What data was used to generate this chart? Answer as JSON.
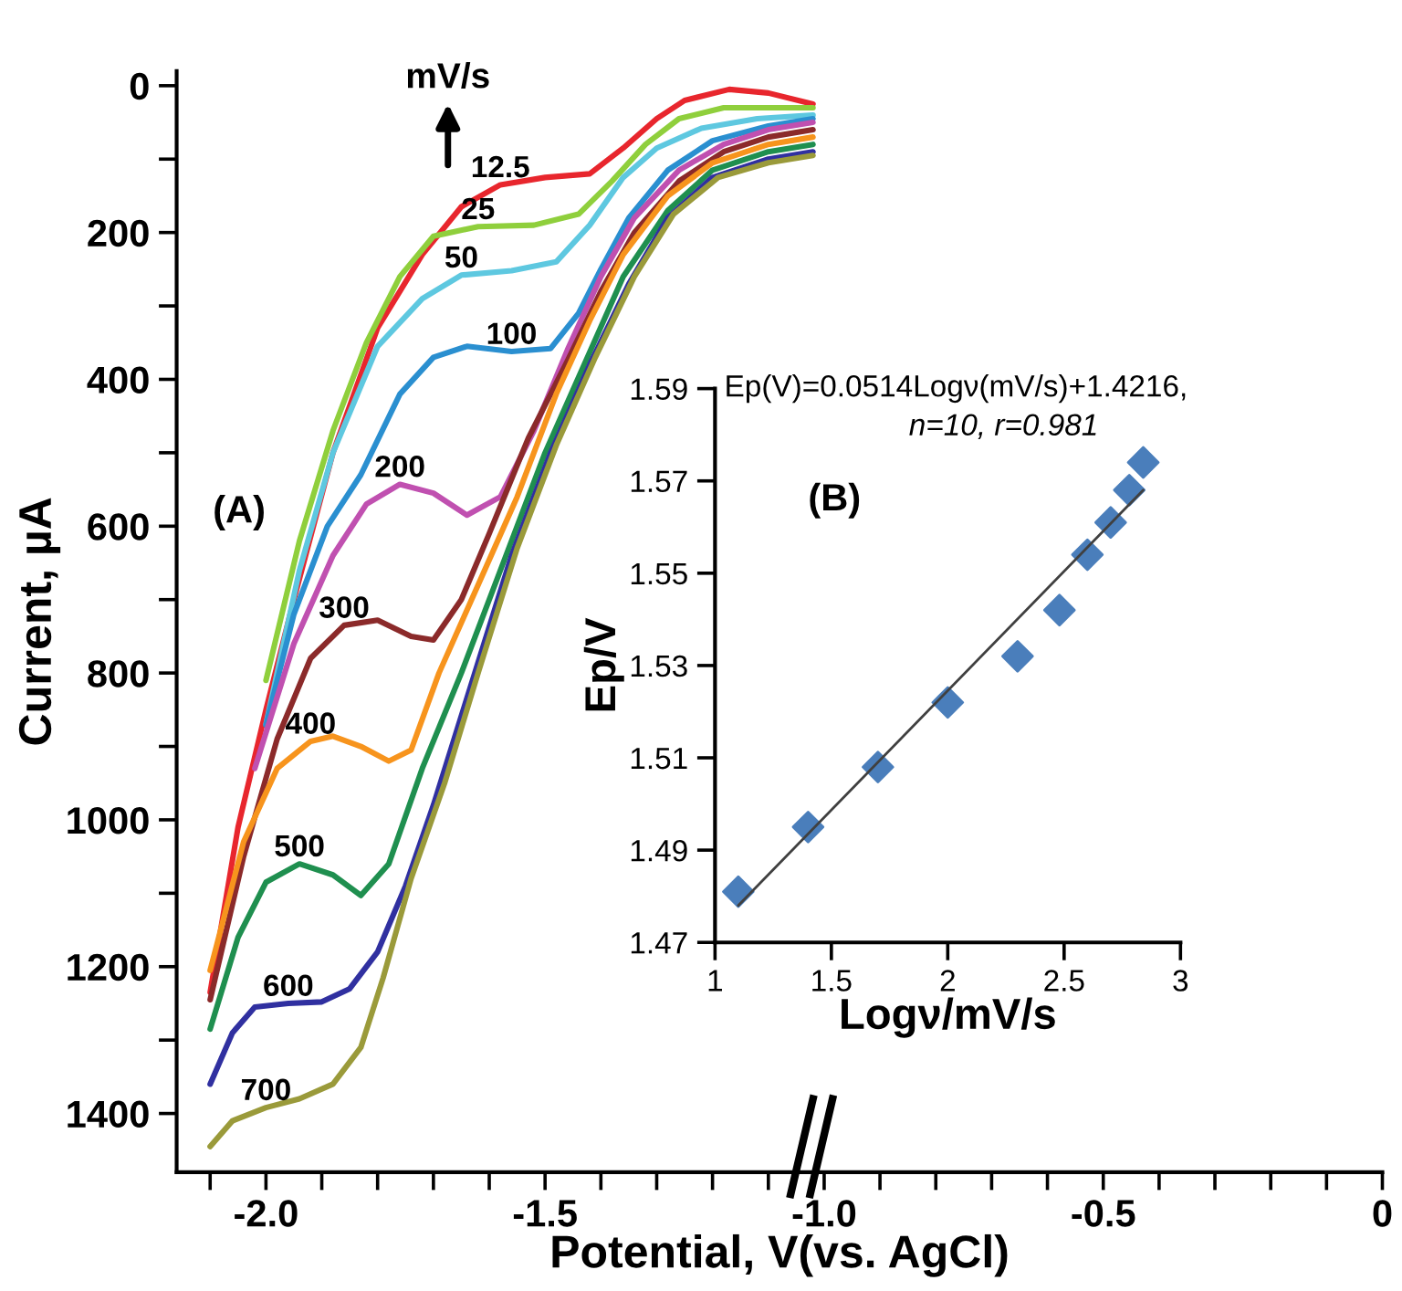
{
  "chart_data": [
    {
      "type": "line",
      "xlabel": "Potential, V(vs. AgCl)",
      "ylabel": "Current, µA",
      "xlim": [
        -2.16,
        0
      ],
      "ylim": [
        1480,
        -20
      ],
      "xticks": [
        {
          "value": -2.1,
          "label": null
        },
        {
          "value": -2.0,
          "label": "-2.0"
        },
        {
          "value": -1.9,
          "label": null
        },
        {
          "value": -1.8,
          "label": null
        },
        {
          "value": -1.7,
          "label": null
        },
        {
          "value": -1.6,
          "label": null
        },
        {
          "value": -1.5,
          "label": "-1.5"
        },
        {
          "value": -1.4,
          "label": null
        },
        {
          "value": -1.3,
          "label": null
        },
        {
          "value": -1.2,
          "label": null
        },
        {
          "value": -1.1,
          "label": null
        },
        {
          "value": -1.0,
          "label": "-1.0"
        },
        {
          "value": -0.9,
          "label": null
        },
        {
          "value": -0.8,
          "label": null
        },
        {
          "value": -0.7,
          "label": null
        },
        {
          "value": -0.6,
          "label": null
        },
        {
          "value": -0.5,
          "label": "-0.5"
        },
        {
          "value": -0.4,
          "label": null
        },
        {
          "value": -0.3,
          "label": null
        },
        {
          "value": -0.2,
          "label": null
        },
        {
          "value": -0.1,
          "label": null
        },
        0
      ],
      "yticks": [
        0,
        {
          "value": 100,
          "label": null
        },
        200,
        {
          "value": 300,
          "label": null
        },
        400,
        {
          "value": 500,
          "label": null
        },
        600,
        {
          "value": 700,
          "label": null
        },
        800,
        {
          "value": 900,
          "label": null
        },
        1000,
        {
          "value": 1100,
          "label": null
        },
        1200,
        {
          "value": 1300,
          "label": null
        },
        1400
      ],
      "series": [
        {
          "name": "12.5",
          "color": "#e8262d",
          "x": [
            -2.1,
            -2.05,
            -2.0,
            -1.95,
            -1.88,
            -1.8,
            -1.72,
            -1.65,
            -1.58,
            -1.5,
            -1.42,
            -1.36,
            -1.3,
            -1.25,
            -1.17,
            -1.1,
            -1.02
          ],
          "values": [
            1235,
            1010,
            850,
            700,
            500,
            330,
            230,
            165,
            135,
            125,
            120,
            85,
            45,
            20,
            5,
            10,
            25
          ]
        },
        {
          "name": "25",
          "color": "#8fcf3c",
          "x": [
            -2.0,
            -1.94,
            -1.88,
            -1.82,
            -1.76,
            -1.7,
            -1.62,
            -1.52,
            -1.44,
            -1.38,
            -1.32,
            -1.26,
            -1.18,
            -1.02
          ],
          "values": [
            810,
            620,
            470,
            350,
            260,
            205,
            192,
            190,
            175,
            130,
            80,
            45,
            30,
            30
          ]
        },
        {
          "name": "50",
          "color": "#5ec8e0",
          "x": [
            -2.0,
            -1.94,
            -1.88,
            -1.8,
            -1.72,
            -1.65,
            -1.56,
            -1.48,
            -1.42,
            -1.36,
            -1.3,
            -1.22,
            -1.12,
            -1.02
          ],
          "values": [
            870,
            660,
            500,
            355,
            290,
            258,
            252,
            240,
            190,
            125,
            85,
            58,
            45,
            40
          ]
        },
        {
          "name": "100",
          "color": "#2a8fd0",
          "x": [
            -2.0,
            -1.95,
            -1.89,
            -1.83,
            -1.76,
            -1.7,
            -1.64,
            -1.56,
            -1.49,
            -1.44,
            -1.4,
            -1.35,
            -1.28,
            -1.2,
            -1.1,
            -1.02
          ],
          "values": [
            871,
            720,
            600,
            530,
            420,
            370,
            355,
            362,
            358,
            310,
            250,
            180,
            115,
            75,
            55,
            45
          ]
        },
        {
          "name": "200",
          "color": "#c050b0",
          "x": [
            -2.02,
            -1.95,
            -1.88,
            -1.82,
            -1.76,
            -1.7,
            -1.64,
            -1.58,
            -1.52,
            -1.46,
            -1.4,
            -1.34,
            -1.26,
            -1.18,
            -1.1,
            -1.02
          ],
          "values": [
            930,
            760,
            640,
            570,
            543,
            555,
            585,
            560,
            470,
            360,
            260,
            180,
            115,
            80,
            60,
            50
          ]
        },
        {
          "name": "300",
          "color": "#8b2a2a",
          "x": [
            -2.1,
            -2.04,
            -1.98,
            -1.92,
            -1.86,
            -1.8,
            -1.74,
            -1.7,
            -1.65,
            -1.6,
            -1.53,
            -1.46,
            -1.4,
            -1.34,
            -1.26,
            -1.18,
            -1.1,
            -1.02
          ],
          "values": [
            1245,
            1050,
            890,
            780,
            735,
            728,
            750,
            755,
            700,
            610,
            480,
            375,
            280,
            200,
            130,
            90,
            70,
            60
          ]
        },
        {
          "name": "400",
          "color": "#f7941d",
          "x": [
            -2.1,
            -2.04,
            -1.98,
            -1.92,
            -1.88,
            -1.83,
            -1.78,
            -1.74,
            -1.69,
            -1.62,
            -1.55,
            -1.48,
            -1.42,
            -1.36,
            -1.28,
            -1.2,
            -1.1,
            -1.02
          ],
          "values": [
            1205,
            1030,
            930,
            893,
            886,
            900,
            920,
            905,
            800,
            680,
            560,
            420,
            320,
            230,
            150,
            105,
            80,
            70
          ]
        },
        {
          "name": "500",
          "color": "#1f8f4f",
          "x": [
            -2.1,
            -2.05,
            -2.0,
            -1.94,
            -1.88,
            -1.83,
            -1.78,
            -1.72,
            -1.65,
            -1.57,
            -1.5,
            -1.43,
            -1.36,
            -1.28,
            -1.2,
            -1.1,
            -1.02
          ],
          "values": [
            1285,
            1160,
            1085,
            1060,
            1075,
            1103,
            1060,
            930,
            800,
            640,
            500,
            380,
            260,
            170,
            115,
            90,
            80
          ]
        },
        {
          "name": "600",
          "color": "#3030a0",
          "x": [
            -2.1,
            -2.06,
            -2.02,
            -1.96,
            -1.9,
            -1.85,
            -1.8,
            -1.75,
            -1.7,
            -1.63,
            -1.56,
            -1.49,
            -1.42,
            -1.35,
            -1.28,
            -1.2,
            -1.1,
            -1.02
          ],
          "values": [
            1360,
            1290,
            1255,
            1250,
            1248,
            1230,
            1180,
            1090,
            980,
            810,
            640,
            500,
            380,
            270,
            180,
            125,
            100,
            90
          ]
        },
        {
          "name": "700",
          "color": "#9a9a3a",
          "x": [
            -2.1,
            -2.06,
            -2.0,
            -1.94,
            -1.88,
            -1.83,
            -1.79,
            -1.74,
            -1.68,
            -1.62,
            -1.55,
            -1.48,
            -1.41,
            -1.34,
            -1.27,
            -1.19,
            -1.1,
            -1.02
          ],
          "values": [
            1445,
            1410,
            1392,
            1380,
            1360,
            1310,
            1215,
            1080,
            950,
            800,
            630,
            490,
            370,
            260,
            175,
            125,
            105,
            95
          ]
        }
      ],
      "annotations": [
        "mV/s",
        "(A)"
      ]
    },
    {
      "type": "scatter",
      "xlabel": "Logν/mV/s",
      "ylabel": "Ep/V",
      "xlim": [
        1,
        3
      ],
      "ylim": [
        1.47,
        1.59
      ],
      "xticks": [
        1,
        1.5,
        2,
        2.5,
        3
      ],
      "yticks": [
        1.47,
        1.49,
        1.51,
        1.53,
        1.55,
        1.57,
        1.59
      ],
      "series": [
        {
          "marker": "diamond",
          "color": "#4a7ebb",
          "x": [
            1.1,
            1.4,
            1.7,
            2.0,
            2.3,
            2.48,
            2.6,
            2.7,
            2.78,
            2.84
          ],
          "values": [
            1.481,
            1.495,
            1.508,
            1.522,
            1.532,
            1.542,
            1.554,
            1.561,
            1.568,
            1.574
          ]
        },
        {
          "type": "line",
          "marker": "none",
          "color": "#404040",
          "x": [
            1.1,
            2.84
          ],
          "values": [
            1.478,
            1.568
          ]
        }
      ],
      "annotations": [
        "Ep(V)=0.0514Logν(mV/s)+1.4216,",
        "n=10, r=0.981",
        "(B)"
      ]
    }
  ]
}
